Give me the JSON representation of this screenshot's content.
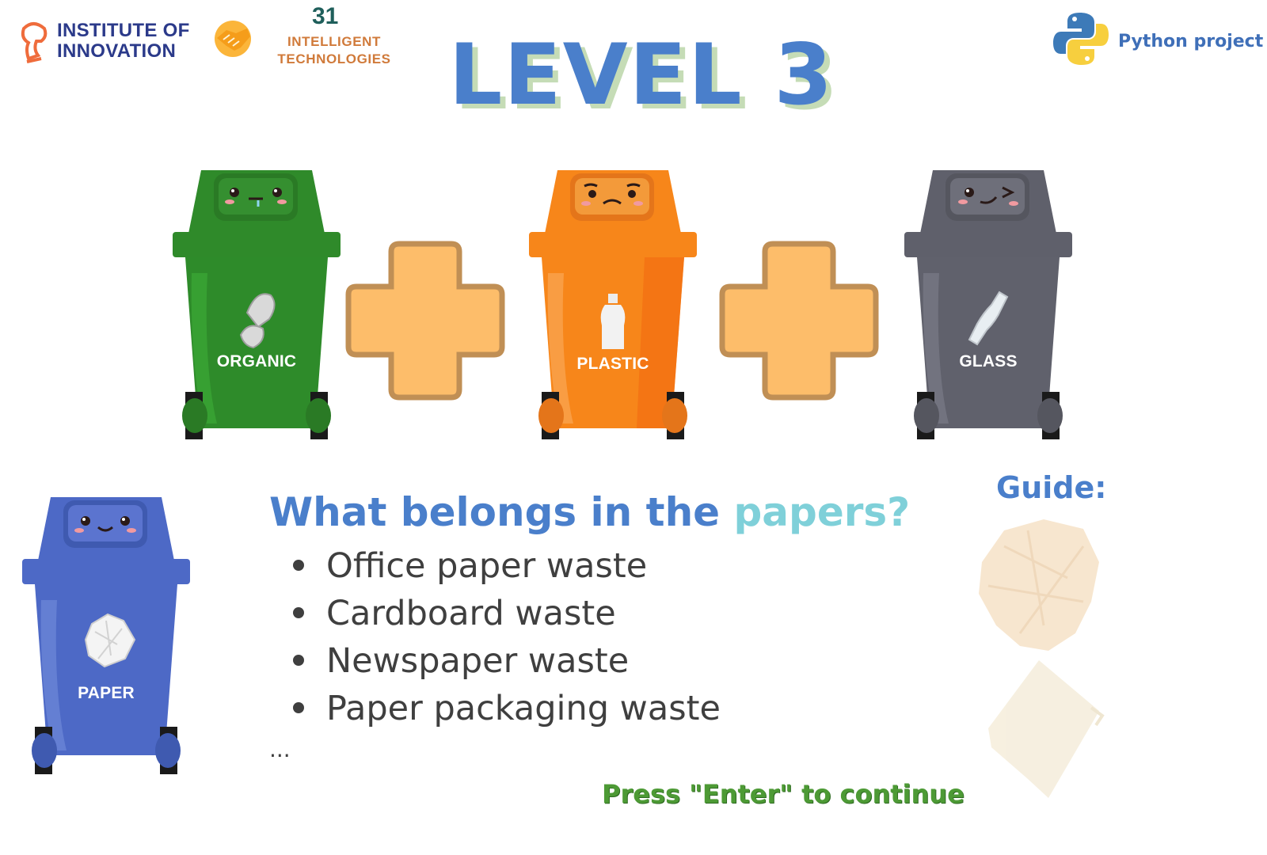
{
  "header": {
    "institute_logo": {
      "line1": "INSTITUTE OF",
      "line2": "INNOVATION",
      "color": "#2b3a8a",
      "accent": "#ef6c3c"
    },
    "handshake_icon": "handshake-icon",
    "intelligent_logo": {
      "number": "31",
      "line1": "INTELLIGENT",
      "line2": "TECHNOLOGIES"
    },
    "python_logo": {
      "label": "Python project"
    }
  },
  "level": {
    "title": "LEVEL 3"
  },
  "bins": [
    {
      "id": "organic",
      "label": "ORGANIC",
      "color": "#2f8a2a",
      "icon": "eggshell-icon"
    },
    {
      "id": "plastic",
      "label": "PLASTIC",
      "color": "#f7861a",
      "icon": "plastic-bottle-icon"
    },
    {
      "id": "glass",
      "label": "GLASS",
      "color": "#5f606b",
      "icon": "glass-bottle-icon"
    },
    {
      "id": "paper",
      "label": "PAPER",
      "color": "#4d69c6",
      "icon": "crumpled-paper-icon"
    }
  ],
  "question": {
    "prefix": "What belongs in the ",
    "highlight": "papers?",
    "items": [
      "Office paper waste",
      "Cardboard waste",
      "Newspaper waste",
      "Paper packaging waste"
    ],
    "ellipsis": "..."
  },
  "guide": {
    "label": "Guide:"
  },
  "footer": {
    "prompt": "Press \"Enter\" to continue"
  },
  "colors": {
    "title": "#4a7fcb",
    "title_shadow": "#c5dcb6",
    "highlight": "#7fd0d9",
    "prompt": "#4d9a35",
    "plus_fill": "#fdbd6a",
    "plus_stroke": "#c08f55"
  }
}
